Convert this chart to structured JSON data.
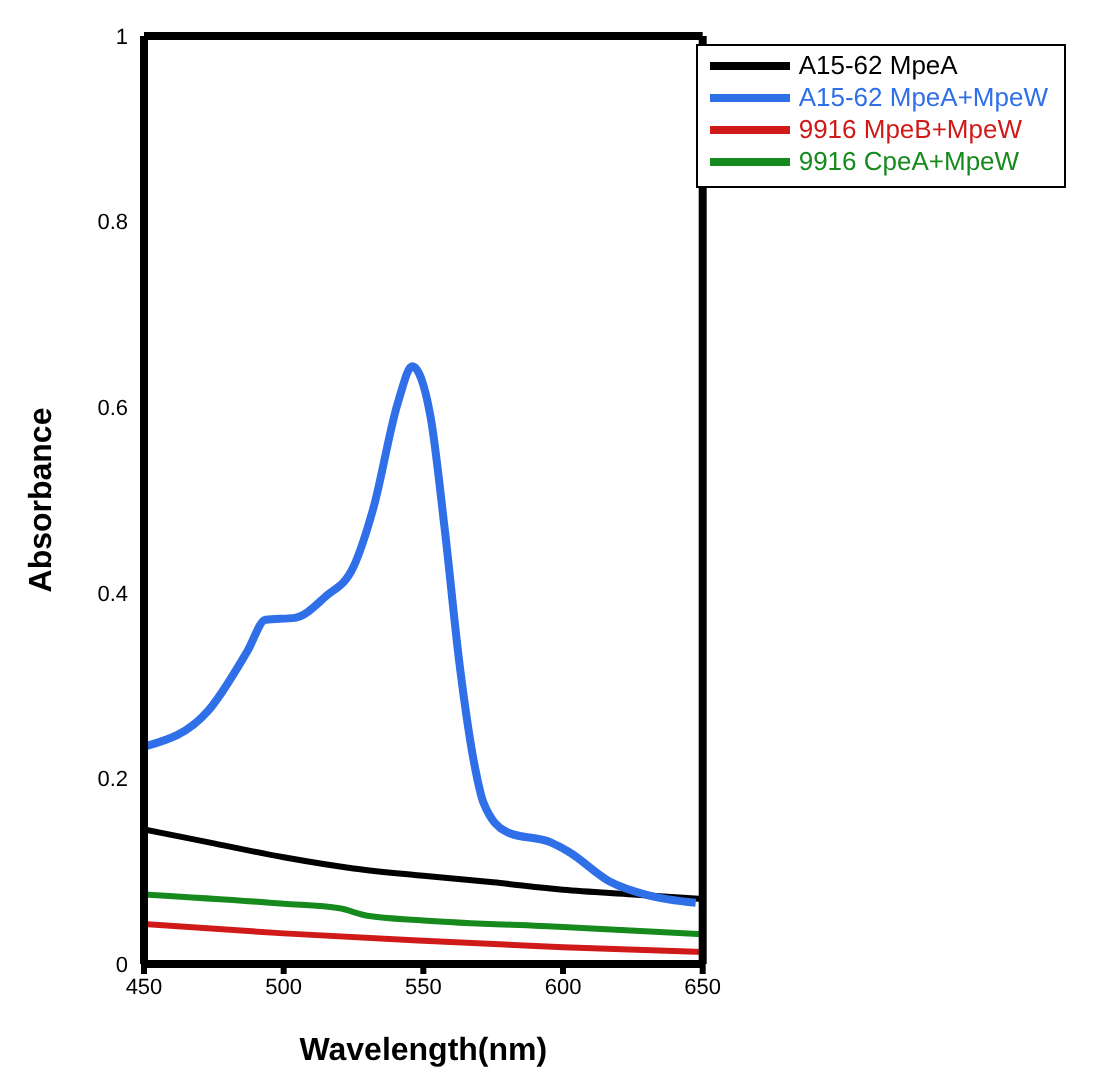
{
  "chart_data": {
    "type": "line",
    "xlabel": "Wavelength(nm)",
    "ylabel": "Absorbance",
    "xlim": [
      450,
      650
    ],
    "xticks": [
      450,
      500,
      550,
      600,
      650
    ],
    "ylim": [
      0,
      1
    ],
    "yticks": [
      0,
      0.2,
      0.4,
      0.6,
      0.8,
      1
    ],
    "grid": false,
    "legend": "top right",
    "marker": "none",
    "line_style": "solid",
    "series": [
      {
        "name": "A15-62 MpeA",
        "color": "#000000",
        "x": [
          450,
          475,
          500,
          525,
          550,
          575,
          600,
          625,
          650
        ],
        "values": [
          0.145,
          0.13,
          0.115,
          0.103,
          0.095,
          0.088,
          0.08,
          0.075,
          0.07
        ]
      },
      {
        "name": "A15-62 MpeA+MpeW",
        "color": "#2f6fe8",
        "x": [
          451,
          473,
          487,
          493.5,
          504,
          515,
          525,
          532,
          541,
          546,
          552.5,
          557.6,
          563,
          568.6,
          571.5,
          580,
          595.6,
          602,
          616.7,
          630.6,
          647.5
        ],
        "values": [
          0.235,
          0.273,
          0.337,
          0.371,
          0.373,
          0.396,
          0.428,
          0.49,
          0.606,
          0.644,
          0.591,
          0.47,
          0.322,
          0.21,
          0.174,
          0.142,
          0.131,
          0.121,
          0.089,
          0.074,
          0.066
        ]
      },
      {
        "name": "9916 MpeB+MpeW",
        "color": "#d01a1a",
        "x": [
          450,
          500,
          550,
          600,
          650
        ],
        "values": [
          0.043,
          0.033,
          0.025,
          0.018,
          0.013
        ]
      },
      {
        "name": "9916 CpeA+MpeW",
        "color": "#178a1e",
        "x": [
          450,
          500,
          520,
          530,
          550,
          600,
          650
        ],
        "values": [
          0.075,
          0.065,
          0.06,
          0.052,
          0.047,
          0.04,
          0.032
        ]
      }
    ]
  }
}
